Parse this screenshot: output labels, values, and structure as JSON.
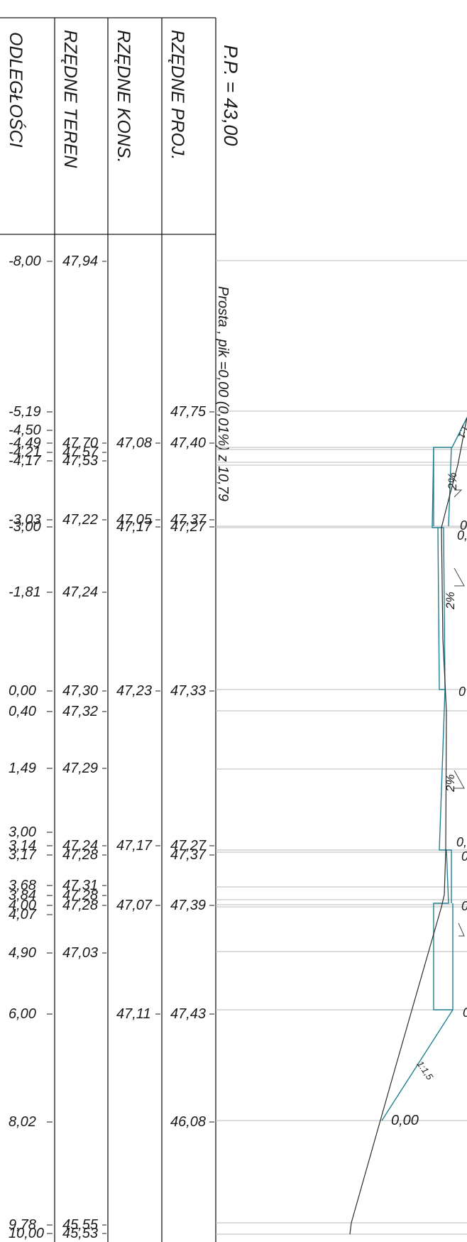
{
  "headers": {
    "distances": "ODLEGŁOŚCI",
    "terrain": "RZĘDNE TEREN",
    "construction": "RZĘDNE KONS.",
    "design": "RZĘDNE PROJ."
  },
  "datum": "P.P. = 43,00",
  "alignment_note": "Prosta , pik =0,00 (0,01%) z 10,79",
  "rows": [
    {
      "dist": "-8,00",
      "terrain": "47,94",
      "cons": "",
      "proj": ""
    },
    {
      "dist": "-5,19",
      "terrain": "",
      "cons": "",
      "proj": "47,75"
    },
    {
      "dist": "-4,50",
      "terrain": "",
      "cons": "",
      "proj": ""
    },
    {
      "dist": "-4,49",
      "terrain": "47,70",
      "cons": "47,08",
      "proj": "47,40"
    },
    {
      "dist": "-4,21",
      "terrain": "47,57",
      "cons": "",
      "proj": ""
    },
    {
      "dist": "-4,17",
      "terrain": "47,53",
      "cons": "",
      "proj": ""
    },
    {
      "dist": "-3,03",
      "terrain": "47,22",
      "cons": "47,05",
      "proj": "47,37"
    },
    {
      "dist": "-3,00",
      "terrain": "",
      "cons": "47,17",
      "proj": "47,27"
    },
    {
      "dist": "-1,81",
      "terrain": "47,24",
      "cons": "",
      "proj": ""
    },
    {
      "dist": "0,00",
      "terrain": "47,30",
      "cons": "47,23",
      "proj": "47,33"
    },
    {
      "dist": "0,40",
      "terrain": "47,32",
      "cons": "",
      "proj": ""
    },
    {
      "dist": "1,49",
      "terrain": "47,29",
      "cons": "",
      "proj": ""
    },
    {
      "dist": "3,00",
      "terrain": "",
      "cons": "",
      "proj": ""
    },
    {
      "dist": "3,14",
      "terrain": "47,24",
      "cons": "47,17",
      "proj": "47,27"
    },
    {
      "dist": "3,17",
      "terrain": "47,28",
      "cons": "",
      "proj": "47,37"
    },
    {
      "dist": "3,68",
      "terrain": "47,31",
      "cons": "",
      "proj": ""
    },
    {
      "dist": "3,84",
      "terrain": "47,28",
      "cons": "",
      "proj": ""
    },
    {
      "dist": "4,00",
      "terrain": "47,28",
      "cons": "47,07",
      "proj": "47,39"
    },
    {
      "dist": "4,07",
      "terrain": "",
      "cons": "",
      "proj": ""
    },
    {
      "dist": "4,90",
      "terrain": "47,03",
      "cons": "",
      "proj": ""
    },
    {
      "dist": "6,00",
      "terrain": "",
      "cons": "47,11",
      "proj": "47,43"
    },
    {
      "dist": "8,02",
      "terrain": "",
      "cons": "",
      "proj": "46,08"
    },
    {
      "dist": "9,78",
      "terrain": "45,55",
      "cons": "",
      "proj": ""
    },
    {
      "dist": "10,00",
      "terrain": "45,53",
      "cons": "",
      "proj": ""
    }
  ],
  "section_labels": {
    "slope_top": "1:1",
    "slope_left": "2%",
    "slope_mid": "2%",
    "slope_lower": "2%",
    "slope_bottom": "1:1,5",
    "zero_bottom": "0,00",
    "zero_a": "0,",
    "zero_b": "0",
    "zero_c": "0,",
    "zero_d": "0",
    "zero_e": "0",
    "zero_f": "0",
    "zero_g": "0"
  },
  "colors": {
    "frame": "#1a1a1a",
    "grid": "#b8b8b8",
    "construction": "#1e7f93",
    "terrain_line": "#2a2a2a"
  }
}
